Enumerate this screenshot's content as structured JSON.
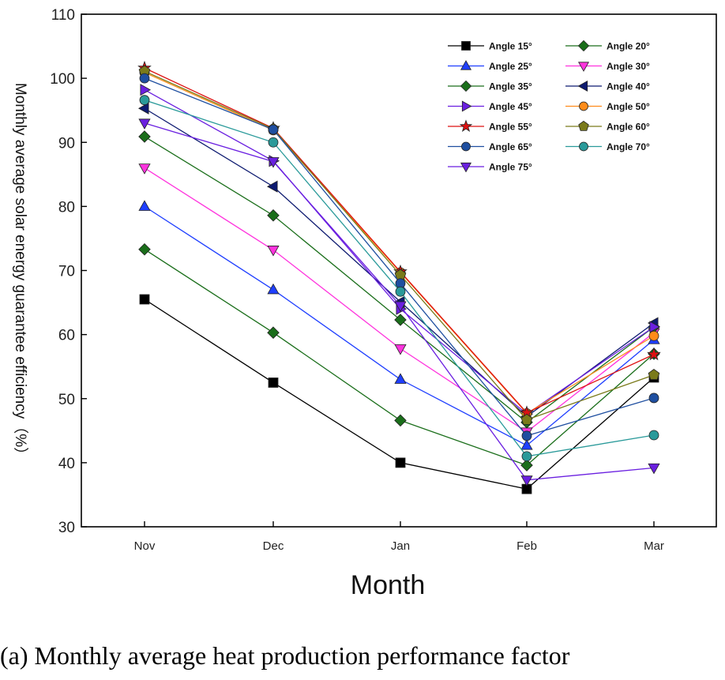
{
  "caption": "(a) Monthly average heat production performance factor",
  "chart_data": {
    "type": "line",
    "title": "",
    "xlabel": "Month",
    "ylabel": "Monthly average solar energy guarantee efficiency（%）",
    "categories": [
      "Nov",
      "Dec",
      "Jan",
      "Feb",
      "Mar"
    ],
    "ylim": [
      30,
      110
    ],
    "yticks": [
      30,
      40,
      50,
      60,
      70,
      80,
      90,
      100,
      110
    ],
    "grid": false,
    "legend_position": "top-right",
    "series": [
      {
        "name": "Angle 15°",
        "values": [
          65.5,
          52.5,
          40.0,
          35.9,
          53.3
        ],
        "color": "#000000",
        "marker": "square"
      },
      {
        "name": "Angle 20°",
        "values": [
          73.3,
          60.3,
          46.6,
          39.6,
          57.0
        ],
        "color": "#1a6e1a",
        "marker": "diamond"
      },
      {
        "name": "Angle 25°",
        "values": [
          80.0,
          67.0,
          53.0,
          42.7,
          59.2
        ],
        "color": "#1f3fff",
        "marker": "triangle-up"
      },
      {
        "name": "Angle 30°",
        "values": [
          86.0,
          73.2,
          57.8,
          44.8,
          60.3
        ],
        "color": "#ff33dd",
        "marker": "triangle-down"
      },
      {
        "name": "Angle 35°",
        "values": [
          90.9,
          78.6,
          62.3,
          46.3,
          61.2
        ],
        "color": "#1a6e1a",
        "marker": "diamond"
      },
      {
        "name": "Angle 40°",
        "values": [
          95.3,
          83.1,
          65.1,
          47.2,
          61.8
        ],
        "color": "#0d1a70",
        "marker": "triangle-left"
      },
      {
        "name": "Angle 45°",
        "values": [
          98.2,
          87.1,
          64.0,
          47.6,
          61.2
        ],
        "color": "#6a1fe0",
        "marker": "triangle-right"
      },
      {
        "name": "Angle 50°",
        "values": [
          100.9,
          91.9,
          69.7,
          47.7,
          59.8
        ],
        "color": "#ff8c1a",
        "marker": "circle"
      },
      {
        "name": "Angle 55°",
        "values": [
          101.6,
          92.2,
          69.8,
          47.8,
          56.9
        ],
        "color": "#dd1111",
        "marker": "star"
      },
      {
        "name": "Angle 60°",
        "values": [
          101.1,
          92.1,
          69.3,
          46.7,
          53.7
        ],
        "color": "#7a7a1a",
        "marker": "pentagon"
      },
      {
        "name": "Angle 65°",
        "values": [
          100.0,
          92.0,
          68.0,
          44.2,
          50.1
        ],
        "color": "#1f4fa0",
        "marker": "circle"
      },
      {
        "name": "Angle 70°",
        "values": [
          96.6,
          90.0,
          66.7,
          41.0,
          44.3
        ],
        "color": "#2a9a9a",
        "marker": "circle"
      },
      {
        "name": "Angle 75°",
        "values": [
          93.0,
          87.0,
          64.5,
          37.3,
          39.2
        ],
        "color": "#6a1fe0",
        "marker": "triangle-down"
      }
    ]
  }
}
